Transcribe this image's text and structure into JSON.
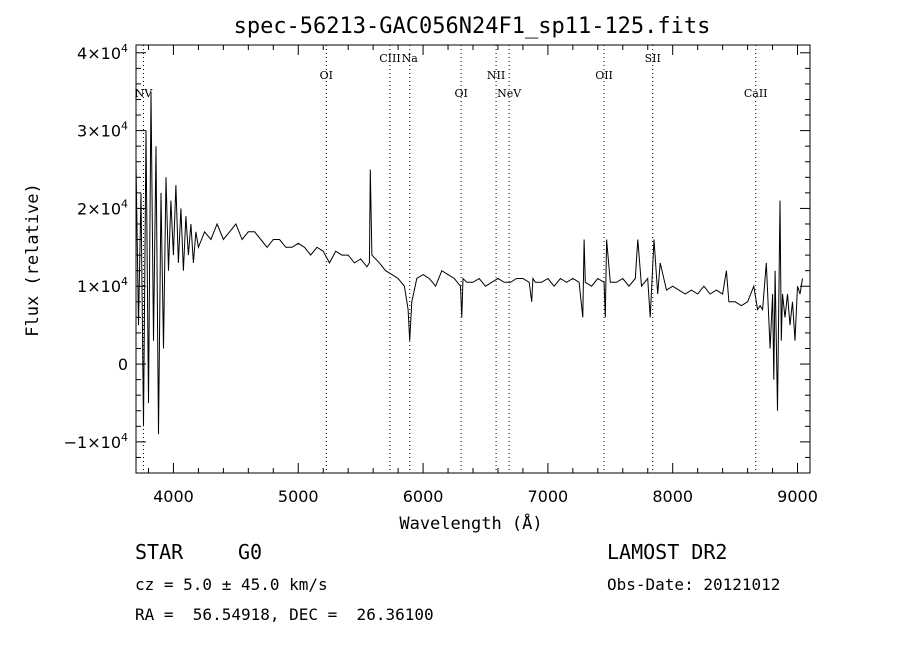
{
  "chart_data": {
    "type": "line",
    "title": "spec-56213-GAC056N24F1_sp11-125.fits",
    "xlabel": "Wavelength (Å)",
    "ylabel": "Flux (relative)",
    "xlim": [
      3700,
      9100
    ],
    "ylim": [
      -14000,
      41000
    ],
    "x_ticks": [
      4000,
      5000,
      6000,
      7000,
      8000,
      9000
    ],
    "x_tick_labels": [
      "4000",
      "5000",
      "6000",
      "7000",
      "8000",
      "9000"
    ],
    "y_ticks": [
      -10000,
      0,
      10000,
      20000,
      30000,
      40000
    ],
    "y_tick_labels": [
      {
        "mantissa": "−1×10",
        "exp": "4"
      },
      {
        "mantissa": "0",
        "exp": ""
      },
      {
        "mantissa": "1×10",
        "exp": "4"
      },
      {
        "mantissa": "2×10",
        "exp": "4"
      },
      {
        "mantissa": "3×10",
        "exp": "4"
      },
      {
        "mantissa": "4×10",
        "exp": "4"
      }
    ],
    "lines": [
      {
        "label": "NV",
        "wavelength": 3760,
        "row": 0
      },
      {
        "label": "OI",
        "wavelength": 5225,
        "row": 1
      },
      {
        "label": "CIII",
        "wavelength": 5735,
        "row": 2
      },
      {
        "label": "Na",
        "wavelength": 5893,
        "row": 2
      },
      {
        "label": "OI",
        "wavelength": 6305,
        "row": 0
      },
      {
        "label": "NII",
        "wavelength": 6585,
        "row": 1
      },
      {
        "label": "NeV",
        "wavelength": 6690,
        "row": 0
      },
      {
        "label": "OII",
        "wavelength": 7450,
        "row": 1
      },
      {
        "label": "SII",
        "wavelength": 7840,
        "row": 2
      },
      {
        "label": "CaII",
        "wavelength": 8665,
        "row": 0
      }
    ],
    "series": [
      {
        "x": [
          3700,
          3720,
          3740,
          3760,
          3780,
          3800,
          3820,
          3840,
          3860,
          3880,
          3900,
          3920,
          3940,
          3960,
          3980,
          4000,
          4020,
          4040,
          4060,
          4080,
          4100,
          4120,
          4140,
          4160,
          4180,
          4200,
          4250,
          4300,
          4350,
          4400,
          4450,
          4500,
          4550,
          4600,
          4650,
          4700,
          4750,
          4800,
          4850,
          4900,
          4950,
          5000,
          5050,
          5100,
          5150,
          5200,
          5250,
          5300,
          5350,
          5400,
          5450,
          5500,
          5550,
          5570,
          5577,
          5590,
          5650,
          5700,
          5750,
          5800,
          5850,
          5880,
          5893,
          5910,
          5950,
          6000,
          6050,
          6100,
          6150,
          6200,
          6250,
          6300,
          6310,
          6320,
          6350,
          6400,
          6450,
          6500,
          6550,
          6600,
          6650,
          6700,
          6750,
          6800,
          6850,
          6870,
          6880,
          6900,
          6950,
          7000,
          7050,
          7100,
          7150,
          7200,
          7250,
          7280,
          7290,
          7300,
          7350,
          7400,
          7450,
          7460,
          7470,
          7500,
          7550,
          7600,
          7650,
          7700,
          7720,
          7750,
          7800,
          7820,
          7850,
          7880,
          7900,
          7950,
          8000,
          8050,
          8100,
          8150,
          8200,
          8250,
          8300,
          8350,
          8400,
          8430,
          8450,
          8500,
          8550,
          8600,
          8650,
          8680,
          8700,
          8720,
          8750,
          8780,
          8800,
          8810,
          8820,
          8840,
          8860,
          8870,
          8880,
          8900,
          8920,
          8940,
          8960,
          8980,
          9000,
          9020,
          9040
        ],
        "y": [
          26000,
          5000,
          22000,
          -8000,
          30000,
          -5000,
          35000,
          3000,
          28000,
          -9000,
          22000,
          2000,
          24000,
          12000,
          21000,
          14000,
          23000,
          13000,
          20000,
          12000,
          19000,
          14000,
          18000,
          13000,
          17000,
          15000,
          17000,
          16000,
          18000,
          16000,
          17000,
          18000,
          16000,
          17000,
          17000,
          16000,
          15000,
          16000,
          16000,
          15000,
          15000,
          15500,
          15000,
          14000,
          15000,
          14500,
          13000,
          14500,
          14000,
          14000,
          13000,
          13500,
          12500,
          13000,
          25000,
          14000,
          13000,
          12000,
          11500,
          11000,
          10000,
          7000,
          3000,
          8000,
          11000,
          11500,
          11000,
          10000,
          12000,
          11500,
          11000,
          10000,
          6000,
          11000,
          10500,
          10500,
          11000,
          10000,
          10500,
          11000,
          10500,
          10500,
          11000,
          11000,
          10500,
          8000,
          11000,
          10500,
          10500,
          11000,
          10000,
          11000,
          10500,
          11000,
          10500,
          6000,
          16000,
          10500,
          10000,
          11000,
          10500,
          6000,
          16000,
          10500,
          10500,
          11000,
          10000,
          11000,
          16000,
          10000,
          11000,
          6000,
          16000,
          9000,
          13000,
          9500,
          10000,
          9500,
          9000,
          9500,
          9000,
          10000,
          9000,
          9500,
          9000,
          12000,
          8000,
          8000,
          7500,
          8000,
          10000,
          7000,
          7500,
          7000,
          13000,
          2000,
          9000,
          -2000,
          12000,
          -6000,
          21000,
          3000,
          9000,
          6000,
          9000,
          5000,
          8000,
          3000,
          10000,
          9000,
          11000
        ],
        "color": "#000000"
      }
    ]
  },
  "info": {
    "class": "STAR",
    "subclass": "G0",
    "survey": "LAMOST DR2",
    "cz": "cz = 5.0 ± 45.0 km/s",
    "obsdate": "Obs-Date: 20121012",
    "radec": "RA =  56.54918, DEC =  26.36100"
  }
}
